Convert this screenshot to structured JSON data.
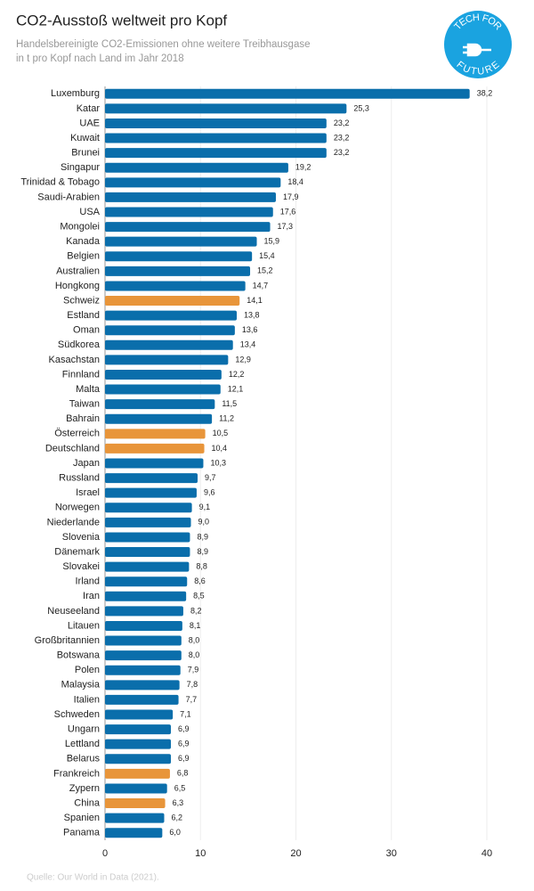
{
  "chart_data": {
    "type": "hbar",
    "title": "CO2-Ausstoß weltweit pro Kopf",
    "subtitle": [
      "Handelsbereinigte CO2-Emissionen ohne weitere Treibhausgase",
      "in t pro Kopf nach Land im Jahr 2018"
    ],
    "source": "Quelle: Our World in Data (2021).",
    "logo": {
      "top": "TECH FOR",
      "bottom": "FUTURE"
    },
    "categories": [
      "Luxemburg",
      "Katar",
      "UAE",
      "Kuwait",
      "Brunei",
      "Singapur",
      "Trinidad & Tobago",
      "Saudi-Arabien",
      "USA",
      "Mongolei",
      "Kanada",
      "Belgien",
      "Australien",
      "Hongkong",
      "Schweiz",
      "Estland",
      "Oman",
      "Südkorea",
      "Kasachstan",
      "Finnland",
      "Malta",
      "Taiwan",
      "Bahrain",
      "Österreich",
      "Deutschland",
      "Japan",
      "Russland",
      "Israel",
      "Norwegen",
      "Niederlande",
      "Slovenia",
      "Dänemark",
      "Slovakei",
      "Irland",
      "Iran",
      "Neuseeland",
      "Litauen",
      "Großbritannien",
      "Botswana",
      "Polen",
      "Malaysia",
      "Italien",
      "Schweden",
      "Ungarn",
      "Lettland",
      "Belarus",
      "Frankreich",
      "Zypern",
      "China",
      "Spanien",
      "Panama"
    ],
    "values": [
      38.2,
      25.3,
      23.2,
      23.2,
      23.2,
      19.2,
      18.4,
      17.9,
      17.6,
      17.3,
      15.9,
      15.4,
      15.2,
      14.7,
      14.1,
      13.8,
      13.6,
      13.4,
      12.9,
      12.2,
      12.1,
      11.5,
      11.2,
      10.5,
      10.4,
      10.3,
      9.7,
      9.6,
      9.1,
      9.0,
      8.9,
      8.9,
      8.8,
      8.6,
      8.5,
      8.2,
      8.1,
      8.0,
      8.0,
      7.9,
      7.8,
      7.7,
      7.1,
      6.9,
      6.9,
      6.9,
      6.8,
      6.5,
      6.3,
      6.2,
      6.0
    ],
    "value_labels": [
      "38,2",
      "25,3",
      "23,2",
      "23,2",
      "23,2",
      "19,2",
      "18,4",
      "17,9",
      "17,6",
      "17,3",
      "15,9",
      "15,4",
      "15,2",
      "14,7",
      "14,1",
      "13,8",
      "13,6",
      "13,4",
      "12,9",
      "12,2",
      "12,1",
      "11,5",
      "11,2",
      "10,5",
      "10,4",
      "10,3",
      "9,7",
      "9,6",
      "9,1",
      "9,0",
      "8,9",
      "8,9",
      "8,8",
      "8,6",
      "8,5",
      "8,2",
      "8,1",
      "8,0",
      "8,0",
      "7,9",
      "7,8",
      "7,7",
      "7,1",
      "6,9",
      "6,9",
      "6,9",
      "6,8",
      "6,5",
      "6,3",
      "6,2",
      "6,0"
    ],
    "colors": [
      "#0a6eab",
      "#0a6eab",
      "#0a6eab",
      "#0a6eab",
      "#0a6eab",
      "#0a6eab",
      "#0a6eab",
      "#0a6eab",
      "#0a6eab",
      "#0a6eab",
      "#0a6eab",
      "#0a6eab",
      "#0a6eab",
      "#0a6eab",
      "#e8953a",
      "#0a6eab",
      "#0a6eab",
      "#0a6eab",
      "#0a6eab",
      "#0a6eab",
      "#0a6eab",
      "#0a6eab",
      "#0a6eab",
      "#e8953a",
      "#e8953a",
      "#0a6eab",
      "#0a6eab",
      "#0a6eab",
      "#0a6eab",
      "#0a6eab",
      "#0a6eab",
      "#0a6eab",
      "#0a6eab",
      "#0a6eab",
      "#0a6eab",
      "#0a6eab",
      "#0a6eab",
      "#0a6eab",
      "#0a6eab",
      "#0a6eab",
      "#0a6eab",
      "#0a6eab",
      "#0a6eab",
      "#0a6eab",
      "#0a6eab",
      "#0a6eab",
      "#e8953a",
      "#0a6eab",
      "#e8953a",
      "#0a6eab",
      "#0a6eab"
    ],
    "xlim": [
      0,
      41
    ],
    "xticks": [
      0,
      10,
      20,
      30,
      40
    ],
    "grid": true
  }
}
